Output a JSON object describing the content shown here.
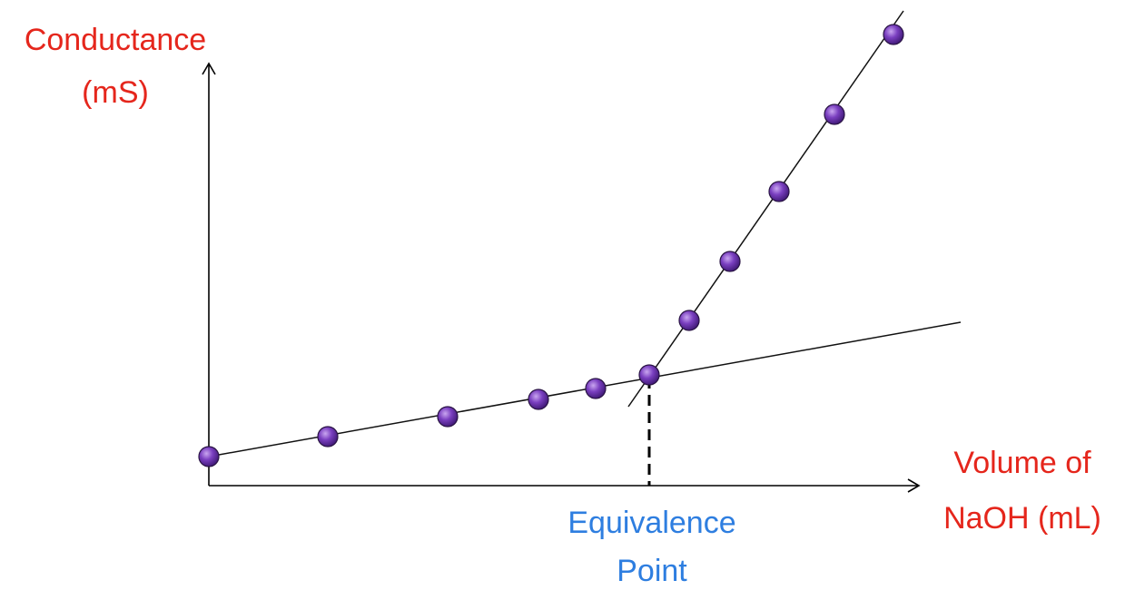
{
  "y_axis_label": [
    "Conductance",
    "(mS)"
  ],
  "x_axis_label": [
    "Volume of",
    "NaOH (mL)"
  ],
  "annotation": [
    "Equivalence",
    "Point"
  ]
}
